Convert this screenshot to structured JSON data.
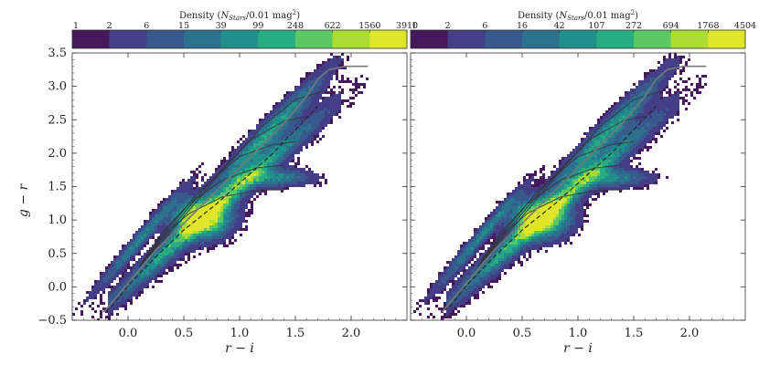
{
  "chart_data": [
    {
      "type": "heatmap",
      "panel": "left",
      "title": "",
      "xlabel": "r − i",
      "ylabel": "g − r",
      "xlim": [
        -0.5,
        2.5
      ],
      "ylim": [
        -0.5,
        3.5
      ],
      "xticks": [
        0.0,
        0.5,
        1.0,
        1.5,
        2.0
      ],
      "xtick_labels": [
        "0.0",
        "0.5",
        "1.0",
        "1.5",
        "2.0"
      ],
      "yticks": [
        -0.5,
        0.0,
        0.5,
        1.0,
        1.5,
        2.0,
        2.5,
        3.0,
        3.5
      ],
      "ytick_labels": [
        "−0.5",
        "0.0",
        "0.5",
        "1.0",
        "1.5",
        "2.0",
        "2.5",
        "3.0",
        "3.5"
      ],
      "colorbar": {
        "title": "Density (N_Stars/0.01 mag²)",
        "title_parts": [
          "Density (",
          "N",
          "Stars",
          "/0.01 mag",
          "2",
          ")"
        ],
        "tick_labels": [
          "1",
          "2",
          "6",
          "15",
          "39",
          "99",
          "248",
          "622",
          "1560",
          "3910"
        ],
        "colors": [
          "#46195c",
          "#433e85",
          "#38598c",
          "#2c718e",
          "#21908d",
          "#27ad81",
          "#5cc863",
          "#aadc32",
          "#e0e52a"
        ]
      },
      "density_peak": {
        "x": 0.65,
        "y": 1.05
      }
    },
    {
      "type": "heatmap",
      "panel": "right",
      "title": "",
      "xlabel": "r − i",
      "ylabel": "",
      "xlim": [
        -0.5,
        2.5
      ],
      "ylim": [
        -0.5,
        3.5
      ],
      "xticks": [
        0.0,
        0.5,
        1.0,
        1.5,
        2.0
      ],
      "xtick_labels": [
        "0.0",
        "0.5",
        "1.0",
        "1.5",
        "2.0"
      ],
      "colorbar": {
        "title": "Density (N_Stars/0.01 mag²)",
        "title_parts": [
          "Density (",
          "N",
          "Stars",
          "/0.01 mag",
          "2",
          ")"
        ],
        "tick_labels": [
          "1",
          "2",
          "6",
          "16",
          "42",
          "107",
          "272",
          "694",
          "1768",
          "4504"
        ],
        "colors": [
          "#46195c",
          "#433e85",
          "#38598c",
          "#2c718e",
          "#21908d",
          "#27ad81",
          "#5cc863",
          "#aadc32",
          "#e0e52a"
        ]
      },
      "density_peak": {
        "x": 0.65,
        "y": 1.05
      }
    }
  ],
  "isochrones": {
    "grey_locus": [
      [
        -0.22,
        -0.38
      ],
      [
        0.0,
        0.05
      ],
      [
        0.25,
        0.55
      ],
      [
        0.5,
        0.95
      ],
      [
        0.8,
        1.45
      ],
      [
        1.1,
        1.95
      ],
      [
        1.4,
        2.45
      ],
      [
        1.6,
        2.85
      ],
      [
        1.7,
        3.1
      ],
      [
        1.8,
        3.25
      ],
      [
        1.95,
        3.3
      ],
      [
        2.15,
        3.3
      ]
    ],
    "dashed_locus": [
      [
        -0.15,
        -0.3
      ],
      [
        0.0,
        0.02
      ],
      [
        0.25,
        0.45
      ],
      [
        0.5,
        0.85
      ],
      [
        0.8,
        1.25
      ],
      [
        1.0,
        1.55
      ],
      [
        1.3,
        2.0
      ],
      [
        1.5,
        2.35
      ],
      [
        1.7,
        2.7
      ]
    ],
    "branches": [
      [
        [
          0.1,
          0.3
        ],
        [
          0.3,
          0.75
        ],
        [
          0.55,
          1.1
        ],
        [
          0.85,
          1.35
        ],
        [
          1.2,
          1.45
        ],
        [
          1.4,
          1.45
        ]
      ],
      [
        [
          0.1,
          0.3
        ],
        [
          0.3,
          0.8
        ],
        [
          0.55,
          1.25
        ],
        [
          0.85,
          1.6
        ],
        [
          1.15,
          1.78
        ],
        [
          1.4,
          1.82
        ]
      ],
      [
        [
          0.1,
          0.3
        ],
        [
          0.35,
          0.85
        ],
        [
          0.65,
          1.45
        ],
        [
          1.0,
          1.95
        ],
        [
          1.3,
          2.13
        ],
        [
          1.5,
          2.17
        ]
      ],
      [
        [
          0.1,
          0.3
        ],
        [
          0.4,
          0.9
        ],
        [
          0.75,
          1.6
        ],
        [
          1.1,
          2.2
        ],
        [
          1.4,
          2.48
        ],
        [
          1.6,
          2.55
        ]
      ],
      [
        [
          0.1,
          0.3
        ],
        [
          0.45,
          0.95
        ],
        [
          0.85,
          1.75
        ],
        [
          1.2,
          2.4
        ],
        [
          1.5,
          2.8
        ],
        [
          1.75,
          2.93
        ]
      ]
    ]
  }
}
